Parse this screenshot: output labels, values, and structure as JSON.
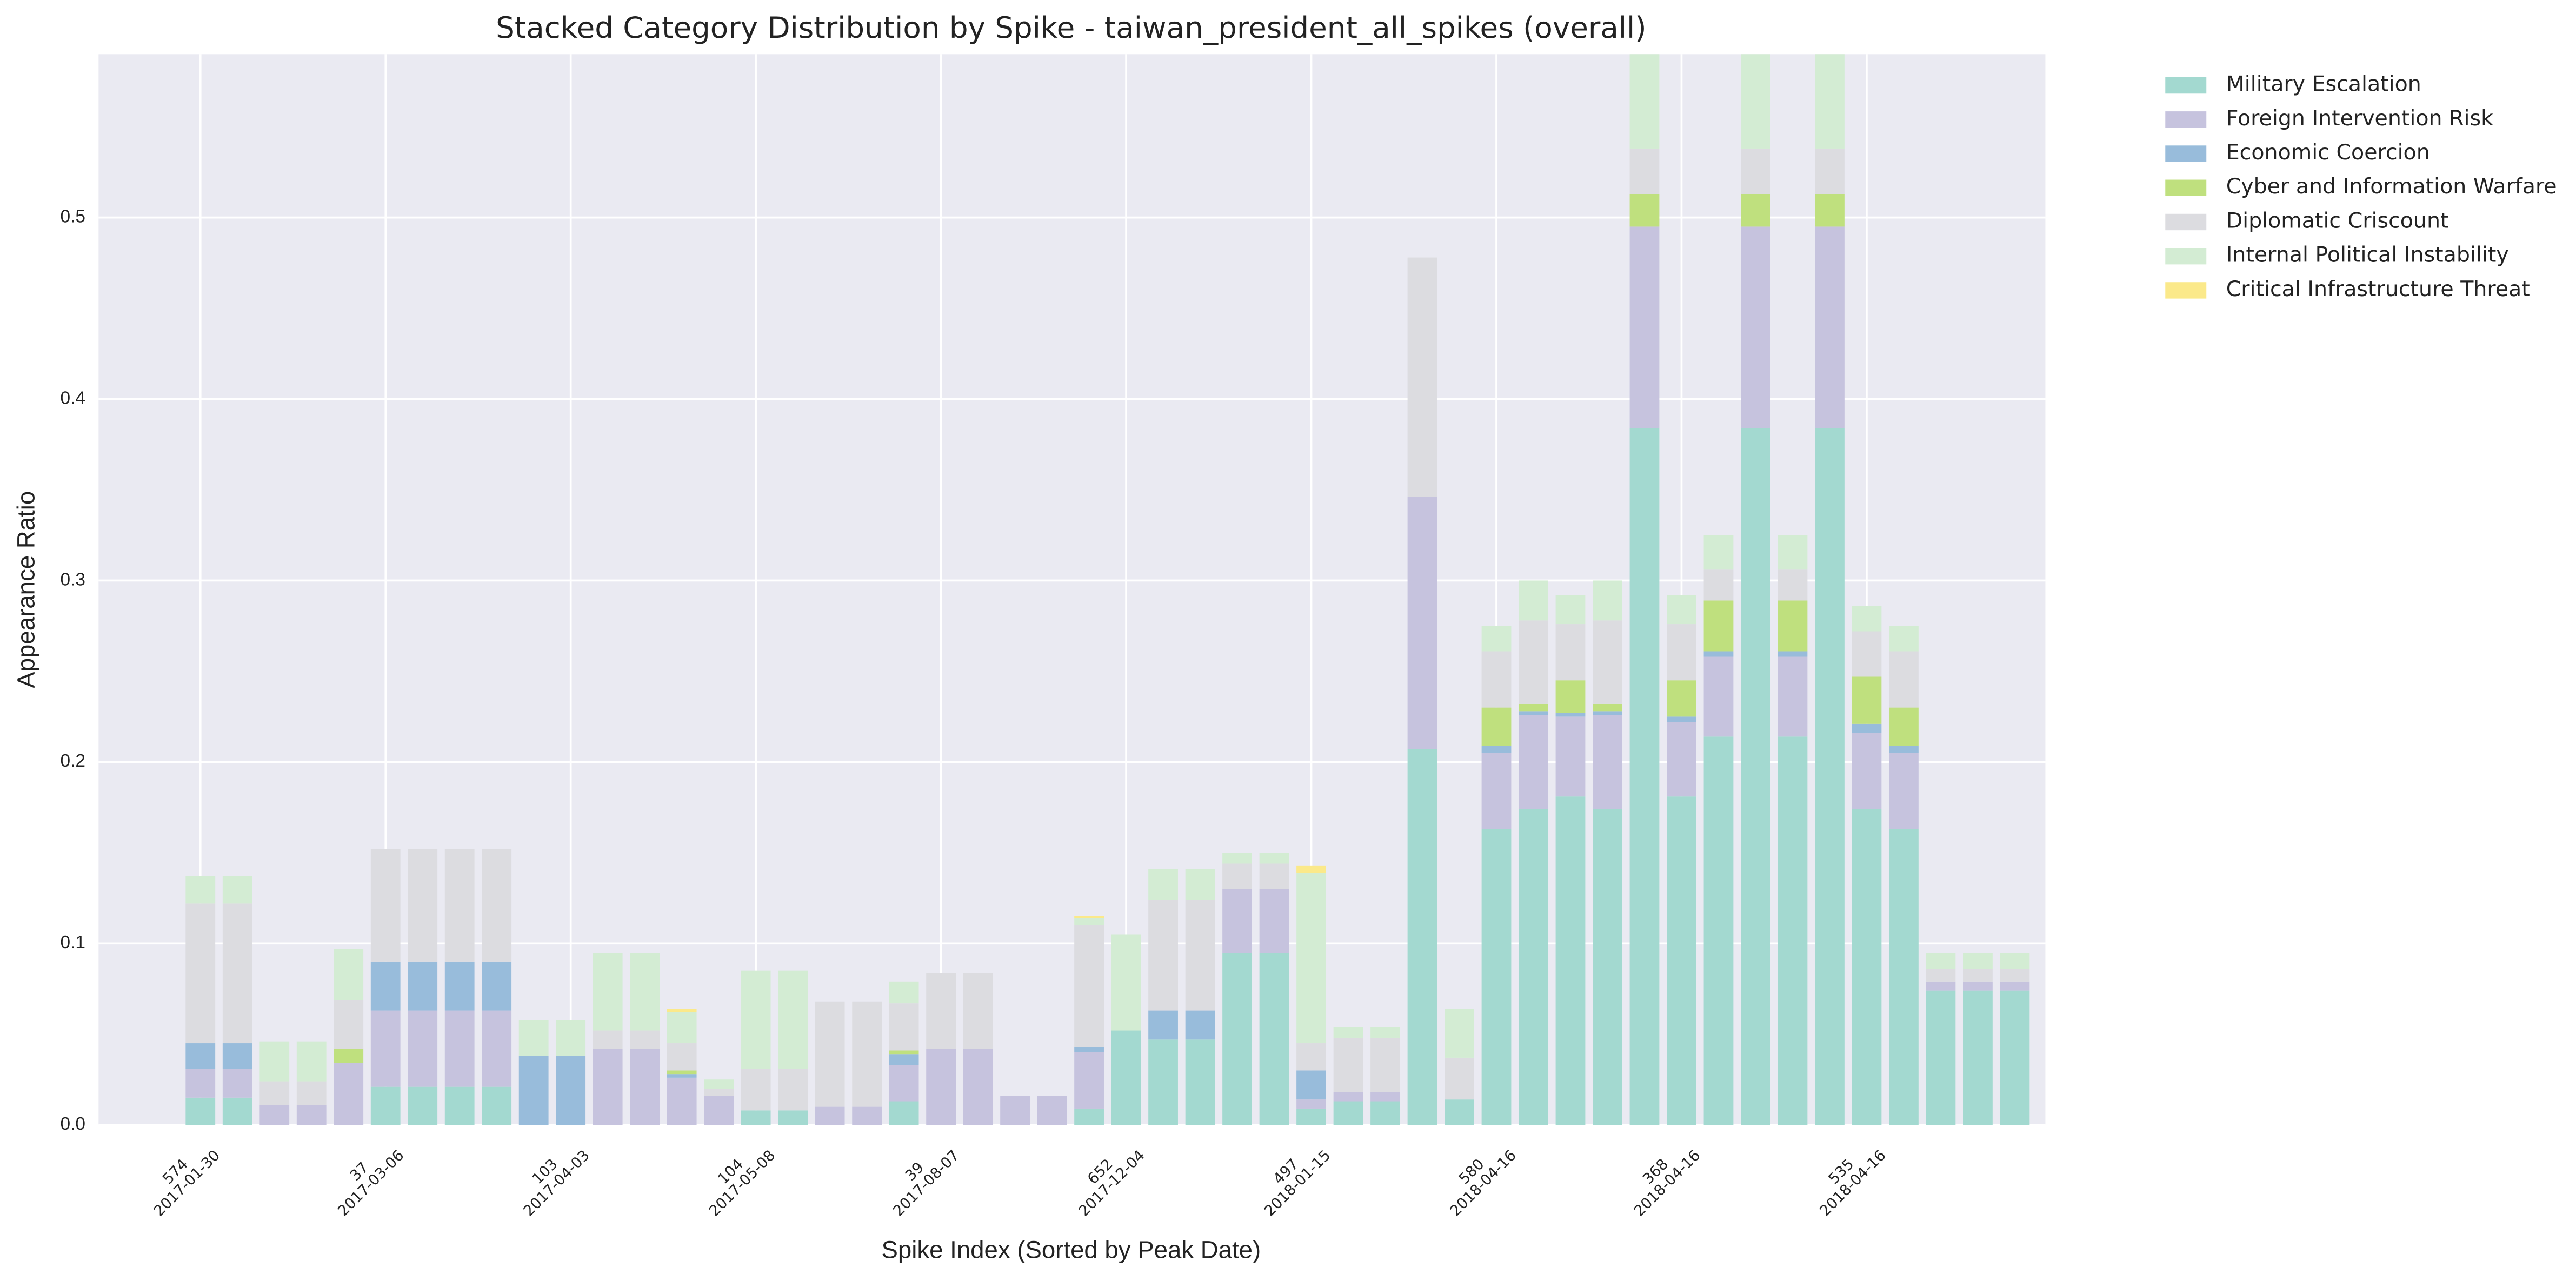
{
  "chart_data": {
    "type": "stacked_bar",
    "title": "Stacked Category Distribution by Spike - taiwan_president_all_spikes (overall)",
    "x_label": "Spike Index (Sorted by Peak Date)",
    "y_label": "Appearance Ratio",
    "categories": [
      "574\n2017-01-30",
      null,
      null,
      null,
      null,
      "37\n2017-03-06",
      null,
      null,
      null,
      null,
      "103\n2017-04-03",
      null,
      null,
      null,
      null,
      "104\n2017-05-08",
      null,
      null,
      null,
      null,
      "39\n2017-08-07",
      null,
      null,
      null,
      null,
      "652\n2017-12-04",
      null,
      null,
      null,
      null,
      "497\n2018-01-15",
      null,
      null,
      null,
      null,
      "580\n2018-04-16",
      null,
      null,
      null,
      null,
      "368\n2018-04-16",
      null,
      null,
      null,
      null,
      "535\n2018-04-16",
      null,
      null,
      null,
      null
    ],
    "ylim": [
      0,
      0.59
    ],
    "yticks": [
      {
        "value": 0,
        "label": "0.0"
      },
      0.1,
      0.2,
      0.3,
      0.4,
      0.5
    ],
    "grid": true,
    "legend": "outside-upper-right",
    "series": [
      {
        "name": "Military Escalation",
        "color": "#a3d9d0",
        "values": [
          0.015,
          0.015,
          0,
          0,
          0,
          0.021,
          0.021,
          0.021,
          0.021,
          0,
          0,
          0,
          0,
          0,
          0,
          0.008,
          0.008,
          0,
          0,
          0.013,
          0,
          0,
          0,
          0,
          0.009,
          0.052,
          0.047,
          0.047,
          0.095,
          0.095,
          0.009,
          0.013,
          0.013,
          0.207,
          0.014,
          0.163,
          0.174,
          0.181,
          0.174,
          0.384,
          0.181,
          0.214,
          0.384,
          0.214,
          0.384,
          0.174,
          0.163,
          0.074,
          0.074,
          0.074
        ]
      },
      {
        "name": "Foreign Intervention Risk",
        "color": "#c6c3de",
        "values": [
          0.016,
          0.016,
          0.011,
          0.011,
          0.034,
          0.042,
          0.042,
          0.042,
          0.042,
          0,
          0,
          0.042,
          0.042,
          0.026,
          0.016,
          0,
          0,
          0.01,
          0.01,
          0.02,
          0.042,
          0.042,
          0.016,
          0.016,
          0.031,
          0,
          0,
          0,
          0.035,
          0.035,
          0.005,
          0.005,
          0.005,
          0.139,
          0,
          0.042,
          0.052,
          0.044,
          0.052,
          0.111,
          0.041,
          0.044,
          0.111,
          0.044,
          0.111,
          0.042,
          0.042,
          0.005,
          0.005,
          0.005
        ]
      },
      {
        "name": "Economic Coercion",
        "color": "#98bcdb",
        "values": [
          0.014,
          0.014,
          0,
          0,
          0,
          0.027,
          0.027,
          0.027,
          0.027,
          0.038,
          0.038,
          0,
          0,
          0.002,
          0,
          0,
          0,
          0,
          0,
          0.006,
          0,
          0,
          0,
          0,
          0.003,
          0,
          0.016,
          0.016,
          0,
          0,
          0.016,
          0,
          0,
          0,
          0,
          0.004,
          0.002,
          0.002,
          0.002,
          0,
          0.003,
          0.003,
          0,
          0.003,
          0,
          0.005,
          0.004,
          0,
          0,
          0
        ]
      },
      {
        "name": "Cyber and Information Warfare",
        "color": "#bfe07e",
        "values": [
          0,
          0,
          0,
          0,
          0.008,
          0,
          0,
          0,
          0,
          0,
          0,
          0,
          0,
          0.002,
          0,
          0,
          0,
          0,
          0,
          0.002,
          0,
          0,
          0,
          0,
          0,
          0,
          0,
          0,
          0,
          0,
          0,
          0,
          0,
          0,
          0,
          0.021,
          0.004,
          0.018,
          0.004,
          0.018,
          0.02,
          0.028,
          0.018,
          0.028,
          0.018,
          0.026,
          0.021,
          0,
          0,
          0
        ]
      },
      {
        "name": "Diplomatic Criscount",
        "color": "#dcdce0",
        "values": [
          0.077,
          0.077,
          0.013,
          0.013,
          0.027,
          0.062,
          0.062,
          0.062,
          0.062,
          0,
          0,
          0.01,
          0.01,
          0.015,
          0.004,
          0.023,
          0.023,
          0.058,
          0.058,
          0.026,
          0.042,
          0.042,
          0,
          0,
          0.067,
          0,
          0.061,
          0.061,
          0.014,
          0.014,
          0.015,
          0.03,
          0.03,
          0.132,
          0.023,
          0.031,
          0.046,
          0.031,
          0.046,
          0.025,
          0.031,
          0.017,
          0.025,
          0.017,
          0.025,
          0.025,
          0.031,
          0.007,
          0.007,
          0.007
        ]
      },
      {
        "name": "Internal Political Instability",
        "color": "#d3ecd3",
        "values": [
          0.015,
          0.015,
          0.022,
          0.022,
          0.028,
          0,
          0,
          0,
          0,
          0.02,
          0.02,
          0.043,
          0.043,
          0.017,
          0.005,
          0.054,
          0.054,
          0,
          0,
          0.012,
          0,
          0,
          0,
          0,
          0.004,
          0.053,
          0.017,
          0.017,
          0.006,
          0.006,
          0.094,
          0.006,
          0.006,
          0,
          0.027,
          0.014,
          0.022,
          0.016,
          0.022,
          0.06,
          0.016,
          0.019,
          0.06,
          0.019,
          0.06,
          0.014,
          0.014,
          0.009,
          0.009,
          0.009
        ]
      },
      {
        "name": "Critical Infrastructure Threat",
        "color": "#fbe98a",
        "values": [
          0,
          0,
          0,
          0,
          0,
          0,
          0,
          0,
          0,
          0,
          0,
          0,
          0,
          0.002,
          0,
          0,
          0,
          0,
          0,
          0,
          0,
          0,
          0,
          0,
          0.001,
          0,
          0,
          0,
          0,
          0,
          0.004,
          0,
          0,
          0,
          0,
          0,
          0,
          0,
          0,
          0,
          0,
          0,
          0,
          0,
          0,
          0,
          0,
          0,
          0,
          0
        ]
      }
    ]
  }
}
